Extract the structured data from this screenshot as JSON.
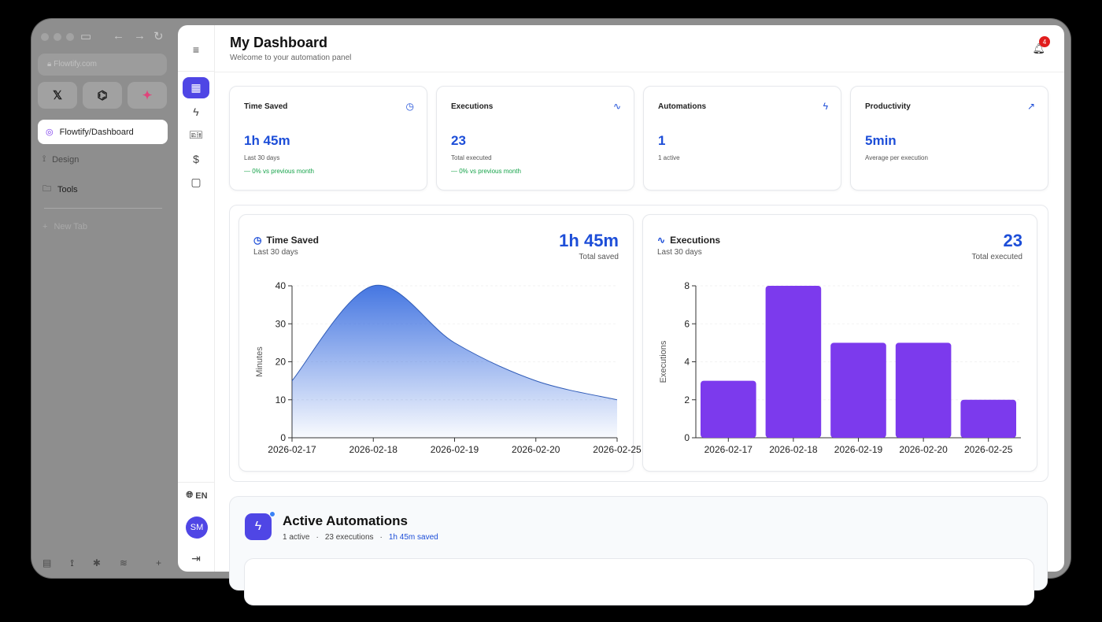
{
  "browser": {
    "url": "Flowtify.com",
    "favorites": [
      {
        "icon": "x-icon",
        "glyph": "𝕏"
      },
      {
        "icon": "github-icon",
        "glyph": "⌬"
      },
      {
        "icon": "figma-icon",
        "glyph": "✦"
      }
    ],
    "active_tab": "Flowtify/Dashboard",
    "items": [
      "Design",
      "Tools"
    ],
    "new_tab": "New Tab"
  },
  "header": {
    "title": "My Dashboard",
    "subtitle": "Welcome to your automation panel",
    "notifications": "4"
  },
  "rail": {
    "language": "EN",
    "avatar": "SM"
  },
  "stats": [
    {
      "label": "Time Saved",
      "value": "1h 45m",
      "note": "Last 30 days",
      "delta": "0% vs previous month",
      "icon": "clock-icon"
    },
    {
      "label": "Executions",
      "value": "23",
      "note": "Total executed",
      "delta": "0% vs previous month",
      "icon": "activity-icon"
    },
    {
      "label": "Automations",
      "value": "1",
      "note": "1 active",
      "delta": "",
      "icon": "bolt-icon"
    },
    {
      "label": "Productivity",
      "value": "5min",
      "note": "Average per execution",
      "delta": "",
      "icon": "trending-up-icon"
    }
  ],
  "charts": {
    "time": {
      "title": "Time Saved",
      "subtitle": "Last 30 days",
      "big": "1h 45m",
      "big_note": "Total saved"
    },
    "exec": {
      "title": "Executions",
      "subtitle": "Last 30 days",
      "big": "23",
      "big_note": "Total executed"
    }
  },
  "chart_data": [
    {
      "type": "area",
      "title": "Time Saved",
      "x": [
        "2026-02-17",
        "2026-02-18",
        "2026-02-19",
        "2026-02-20",
        "2026-02-25"
      ],
      "values": [
        15,
        40,
        25,
        15,
        10
      ],
      "ylabel": "Minutes",
      "ylim": [
        0,
        40
      ],
      "yticks": [
        0,
        10,
        20,
        30,
        40
      ],
      "color": "#3b6fe0"
    },
    {
      "type": "bar",
      "title": "Executions",
      "categories": [
        "2026-02-17",
        "2026-02-18",
        "2026-02-19",
        "2026-02-20",
        "2026-02-25"
      ],
      "values": [
        3,
        8,
        5,
        5,
        2
      ],
      "ylabel": "Executions",
      "ylim": [
        0,
        8
      ],
      "yticks": [
        0,
        2,
        4,
        6,
        8
      ],
      "color": "#7c3aed"
    }
  ],
  "automations": {
    "title": "Active Automations",
    "active": "1 active",
    "executions": "23 executions",
    "saved": "1h 45m saved"
  }
}
